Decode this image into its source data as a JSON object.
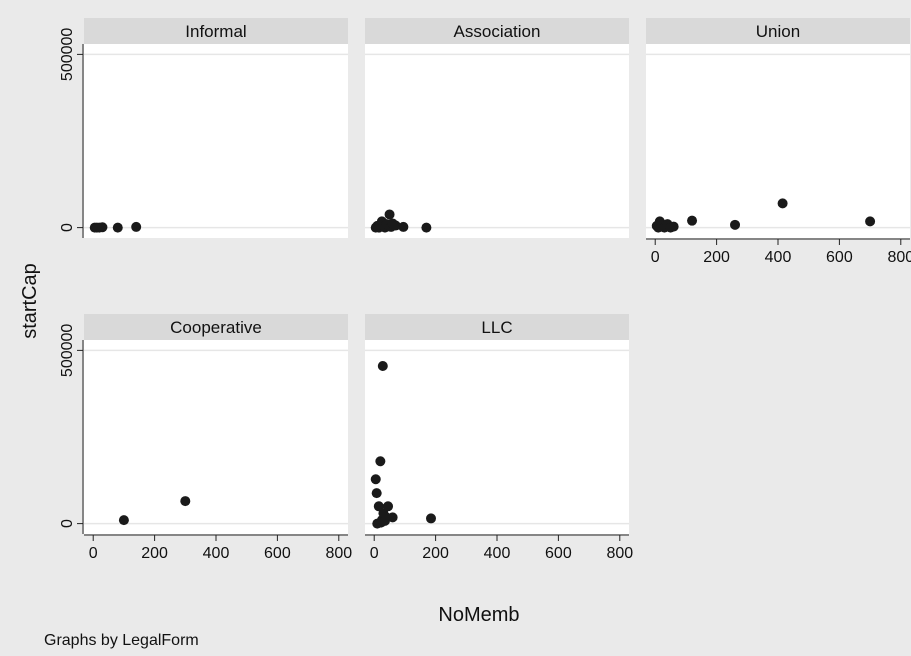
{
  "chart_data": {
    "type": "scatter",
    "xlabel": "NoMemb",
    "ylabel": "startCap",
    "note": "Graphs by LegalForm",
    "xlim": [
      -30,
      830
    ],
    "ylim": [
      -30000,
      530000
    ],
    "x_ticks": [
      0,
      200,
      400,
      600,
      800
    ],
    "y_ticks": [
      0,
      500000
    ],
    "grid": true,
    "marker_color": "#1a1a1a",
    "panels": [
      {
        "name": "Informal",
        "points": [
          {
            "x": 5,
            "y": 0
          },
          {
            "x": 12,
            "y": 0
          },
          {
            "x": 20,
            "y": 0
          },
          {
            "x": 30,
            "y": 1000
          },
          {
            "x": 80,
            "y": 0
          },
          {
            "x": 140,
            "y": 2000
          }
        ]
      },
      {
        "name": "Association",
        "points": [
          {
            "x": 5,
            "y": 0
          },
          {
            "x": 10,
            "y": 5000
          },
          {
            "x": 15,
            "y": 0
          },
          {
            "x": 20,
            "y": 8000
          },
          {
            "x": 25,
            "y": 18000
          },
          {
            "x": 30,
            "y": 3000
          },
          {
            "x": 35,
            "y": 0
          },
          {
            "x": 40,
            "y": 10000
          },
          {
            "x": 50,
            "y": 38000
          },
          {
            "x": 55,
            "y": 2000
          },
          {
            "x": 60,
            "y": 12000
          },
          {
            "x": 70,
            "y": 6000
          },
          {
            "x": 95,
            "y": 2000
          },
          {
            "x": 170,
            "y": 0
          }
        ]
      },
      {
        "name": "Union",
        "points": [
          {
            "x": 5,
            "y": 5000
          },
          {
            "x": 10,
            "y": 0
          },
          {
            "x": 15,
            "y": 18000
          },
          {
            "x": 20,
            "y": 3000
          },
          {
            "x": 25,
            "y": 8000
          },
          {
            "x": 30,
            "y": 0
          },
          {
            "x": 40,
            "y": 10000
          },
          {
            "x": 50,
            "y": 0
          },
          {
            "x": 60,
            "y": 3000
          },
          {
            "x": 120,
            "y": 20000
          },
          {
            "x": 260,
            "y": 8000
          },
          {
            "x": 415,
            "y": 70000
          },
          {
            "x": 700,
            "y": 18000
          }
        ]
      },
      {
        "name": "Cooperative",
        "points": [
          {
            "x": 100,
            "y": 10000
          },
          {
            "x": 300,
            "y": 65000
          }
        ]
      },
      {
        "name": "LLC",
        "points": [
          {
            "x": 5,
            "y": 128000
          },
          {
            "x": 8,
            "y": 88000
          },
          {
            "x": 10,
            "y": 0
          },
          {
            "x": 15,
            "y": 50000
          },
          {
            "x": 20,
            "y": 180000
          },
          {
            "x": 22,
            "y": 3000
          },
          {
            "x": 25,
            "y": 10000
          },
          {
            "x": 28,
            "y": 455000
          },
          {
            "x": 30,
            "y": 30000
          },
          {
            "x": 35,
            "y": 8000
          },
          {
            "x": 40,
            "y": 18000
          },
          {
            "x": 45,
            "y": 50000
          },
          {
            "x": 60,
            "y": 18000
          },
          {
            "x": 185,
            "y": 15000
          }
        ]
      }
    ]
  }
}
